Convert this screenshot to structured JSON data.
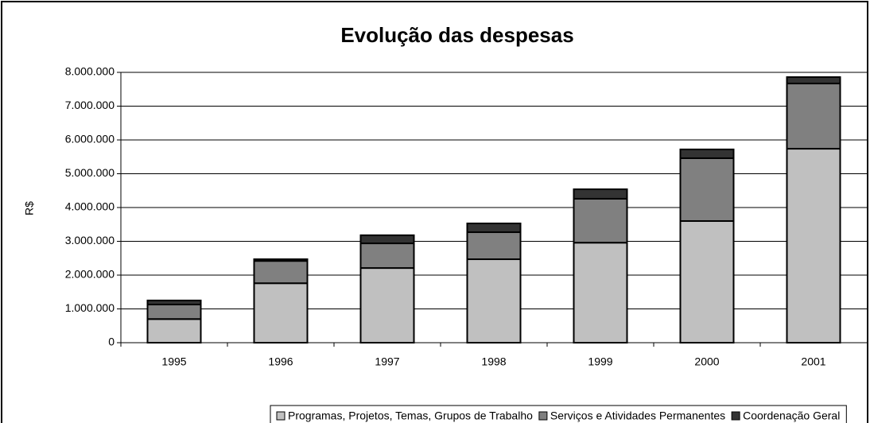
{
  "chart_data": {
    "type": "stacked_bar",
    "title": "Evolução das despesas",
    "y_label": "R$",
    "categories": [
      "1995",
      "1996",
      "1997",
      "1998",
      "1999",
      "2000",
      "2001"
    ],
    "series": [
      {
        "name": "Programas, Projetos, Temas, Grupos de Trabalho",
        "color": "#c0c0c0",
        "values": [
          700000,
          1760000,
          2210000,
          2470000,
          2960000,
          3600000,
          5740000
        ]
      },
      {
        "name": "Serviços e Atividades Permanentes",
        "color": "#808080",
        "values": [
          430000,
          660000,
          730000,
          800000,
          1300000,
          1860000,
          1930000
        ]
      },
      {
        "name": "Coordenação Geral",
        "color": "#333333",
        "values": [
          120000,
          50000,
          240000,
          260000,
          280000,
          260000,
          190000
        ]
      }
    ],
    "ylim": [
      0,
      8000000
    ],
    "yticks": [
      0,
      {
        "value": 1000000,
        "label": "1.000.000"
      },
      {
        "value": 2000000,
        "label": "2.000.000"
      },
      {
        "value": 3000000,
        "label": "3.000.000"
      },
      {
        "value": 4000000,
        "label": "4.000.000"
      },
      {
        "value": 5000000,
        "label": "5.000.000"
      },
      {
        "value": 6000000,
        "label": "6.000.000"
      },
      {
        "value": 7000000,
        "label": "7.000.000"
      },
      {
        "value": 8000000,
        "label": "8.000.000"
      }
    ],
    "grid": true,
    "legend": "bottom"
  }
}
